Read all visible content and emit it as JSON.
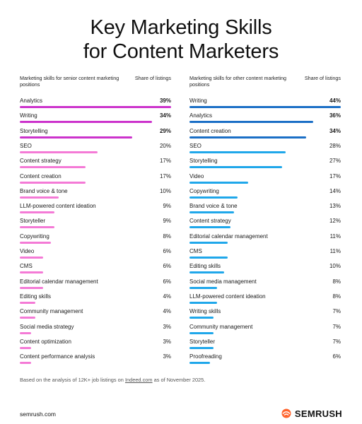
{
  "title": {
    "line1": "Key Marketing Skills",
    "line2": "for Content Marketers"
  },
  "chart_data": [
    {
      "type": "bar",
      "orientation": "horizontal",
      "label_header": "Marketing skills for senior content marketing positions",
      "value_header": "Share of listings",
      "categories": [
        "Analytics",
        "Writing",
        "Storytelling",
        "SEO",
        "Content strategy",
        "Content creation",
        "Brand voice & tone",
        "LLM-powered content ideation",
        "Storyteller",
        "Copywriting",
        "Video",
        "CMS",
        "Editorial calendar management",
        "Editing skills",
        "Community management",
        "Social media strategy",
        "Content optimization",
        "Content performance analysis"
      ],
      "values": [
        39,
        34,
        29,
        20,
        17,
        17,
        10,
        9,
        9,
        8,
        6,
        6,
        6,
        4,
        4,
        3,
        3,
        3
      ],
      "value_labels": [
        "39%",
        "34%",
        "29%",
        "20%",
        "17%",
        "17%",
        "10%",
        "9%",
        "9%",
        "8%",
        "6%",
        "6%",
        "6%",
        "4%",
        "4%",
        "3%",
        "3%",
        "3%"
      ],
      "highlight_count": 3,
      "colors": {
        "highlight": "#cc33cc",
        "normal": "#f47ad6"
      },
      "xlim": [
        0,
        39
      ]
    },
    {
      "type": "bar",
      "orientation": "horizontal",
      "label_header": "Marketing skills for other content marketing positions",
      "value_header": "Share of listings",
      "categories": [
        "Writing",
        "Analytics",
        "Content creation",
        "SEO",
        "Storytelling",
        "Video",
        "Copywriting",
        "Brand voice & tone",
        "Content strategy",
        "Editorial calendar management",
        "CMS",
        "Editing skills",
        "Social media management",
        "LLM-powered content ideation",
        "Writing skills",
        "Community management",
        "Storyteller",
        "Proofreading"
      ],
      "values": [
        44,
        36,
        34,
        28,
        27,
        17,
        14,
        13,
        12,
        11,
        11,
        10,
        8,
        8,
        7,
        7,
        7,
        6
      ],
      "value_labels": [
        "44%",
        "36%",
        "34%",
        "28%",
        "27%",
        "17%",
        "14%",
        "13%",
        "12%",
        "11%",
        "11%",
        "10%",
        "8%",
        "8%",
        "7%",
        "7%",
        "7%",
        "6%"
      ],
      "highlight_count": 3,
      "colors": {
        "highlight": "#1b6fc6",
        "normal": "#1fa7ea"
      },
      "xlim": [
        0,
        44
      ]
    }
  ],
  "footnote": {
    "before": "Based on the analysis of 12K+ job listings on ",
    "link": "Indeed.com",
    "after": " as of November 2025."
  },
  "footer": {
    "site": "semrush.com",
    "brand": "SEMRUSH",
    "brand_color": "#ff642d"
  }
}
